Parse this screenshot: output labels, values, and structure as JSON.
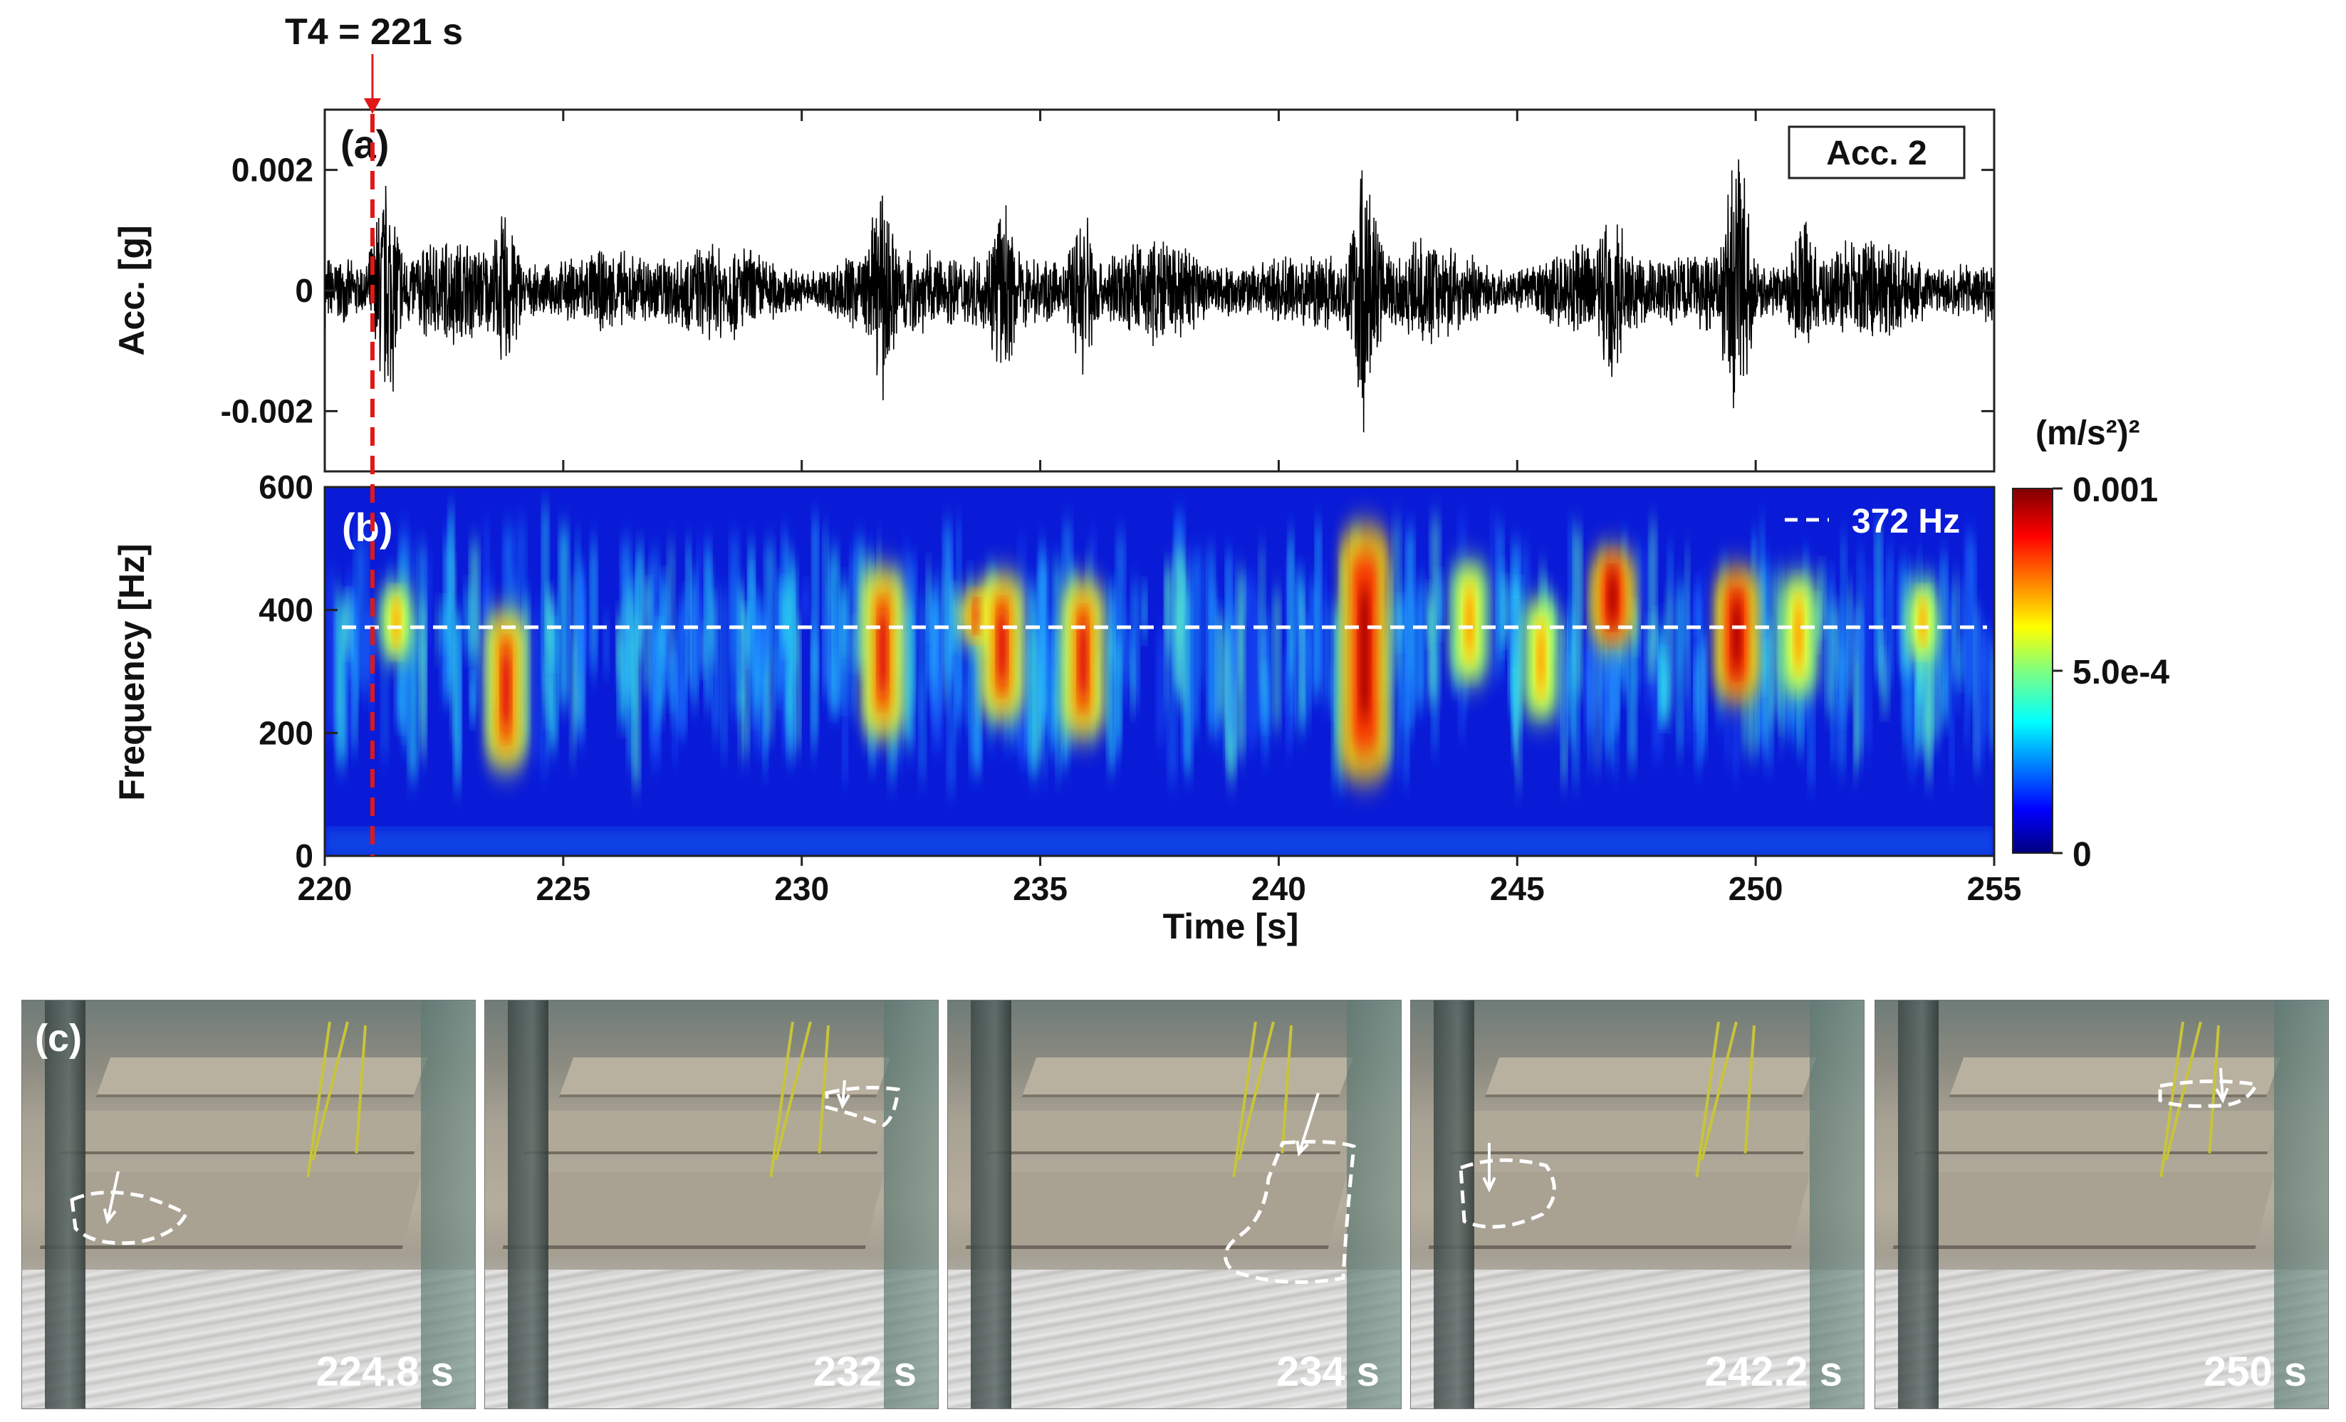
{
  "annotation": {
    "marker_label": "T4 = 221 s",
    "marker_time": 221
  },
  "chart_data": [
    {
      "panel": "(a)",
      "type": "line",
      "ylabel": "Acc. [g]",
      "legend": "Acc. 2",
      "xlim": [
        220,
        255
      ],
      "ylim": [
        -0.003,
        0.003
      ],
      "y_ticks": [
        "0.002",
        "0",
        "-0.002"
      ],
      "y_tick_values": [
        0.002,
        0,
        -0.002
      ],
      "series": [
        {
          "values_envelope_note": "dense accelerometer signal; amplitude bursts listed below",
          "baseline_amplitude": 0.0009,
          "bursts": [
            {
              "t": 221.3,
              "amp": 0.0021
            },
            {
              "t": 223.8,
              "amp": 0.0015
            },
            {
              "t": 231.7,
              "amp": 0.0019
            },
            {
              "t": 234.2,
              "amp": 0.0016
            },
            {
              "t": 235.9,
              "amp": 0.0016
            },
            {
              "t": 241.8,
              "amp": 0.0025
            },
            {
              "t": 247.0,
              "amp": 0.0018
            },
            {
              "t": 249.6,
              "amp": 0.0024
            },
            {
              "t": 251.0,
              "amp": 0.0013
            }
          ]
        }
      ]
    },
    {
      "panel": "(b)",
      "type": "heatmap",
      "xlabel": "Time [s]",
      "ylabel": "Frequency [Hz]",
      "xlim": [
        220,
        255
      ],
      "ylim": [
        0,
        600
      ],
      "x_ticks": [
        "220",
        "225",
        "230",
        "235",
        "240",
        "245",
        "250",
        "255"
      ],
      "x_tick_values": [
        220,
        225,
        230,
        235,
        240,
        245,
        250,
        255
      ],
      "y_ticks": [
        "600",
        "400",
        "200",
        "0"
      ],
      "y_tick_values": [
        600,
        400,
        200,
        0
      ],
      "reference_line": {
        "label": "372 Hz",
        "value": 372
      },
      "colorbar": {
        "unit": "(m/s²)²",
        "ticks": [
          "0.001",
          "5.0e-4",
          "0"
        ],
        "tick_values": [
          0.001,
          0.0005,
          0
        ],
        "colormap": "jet"
      },
      "hotspots": [
        {
          "t": 221.5,
          "f_center": 380,
          "f_span": 120,
          "intensity": 0.55
        },
        {
          "t": 223.8,
          "f_center": 270,
          "f_span": 260,
          "intensity": 0.75
        },
        {
          "t": 231.7,
          "f_center": 330,
          "f_span": 280,
          "intensity": 0.8
        },
        {
          "t": 233.7,
          "f_center": 390,
          "f_span": 90,
          "intensity": 0.75
        },
        {
          "t": 234.2,
          "f_center": 340,
          "f_span": 240,
          "intensity": 0.85
        },
        {
          "t": 235.9,
          "f_center": 320,
          "f_span": 260,
          "intensity": 0.8
        },
        {
          "t": 241.8,
          "f_center": 330,
          "f_span": 420,
          "intensity": 1.0
        },
        {
          "t": 244.0,
          "f_center": 380,
          "f_span": 200,
          "intensity": 0.7
        },
        {
          "t": 245.5,
          "f_center": 320,
          "f_span": 200,
          "intensity": 0.6
        },
        {
          "t": 247.0,
          "f_center": 420,
          "f_span": 160,
          "intensity": 0.9
        },
        {
          "t": 249.6,
          "f_center": 360,
          "f_span": 220,
          "intensity": 0.9
        },
        {
          "t": 250.9,
          "f_center": 360,
          "f_span": 200,
          "intensity": 0.7
        },
        {
          "t": 253.5,
          "f_center": 380,
          "f_span": 120,
          "intensity": 0.5
        }
      ]
    }
  ],
  "photos": {
    "panel_label": "(c)",
    "frames": [
      {
        "time_label": "224.8 s"
      },
      {
        "time_label": "232 s"
      },
      {
        "time_label": "234 s"
      },
      {
        "time_label": "242.2 s"
      },
      {
        "time_label": "250 s"
      }
    ]
  }
}
